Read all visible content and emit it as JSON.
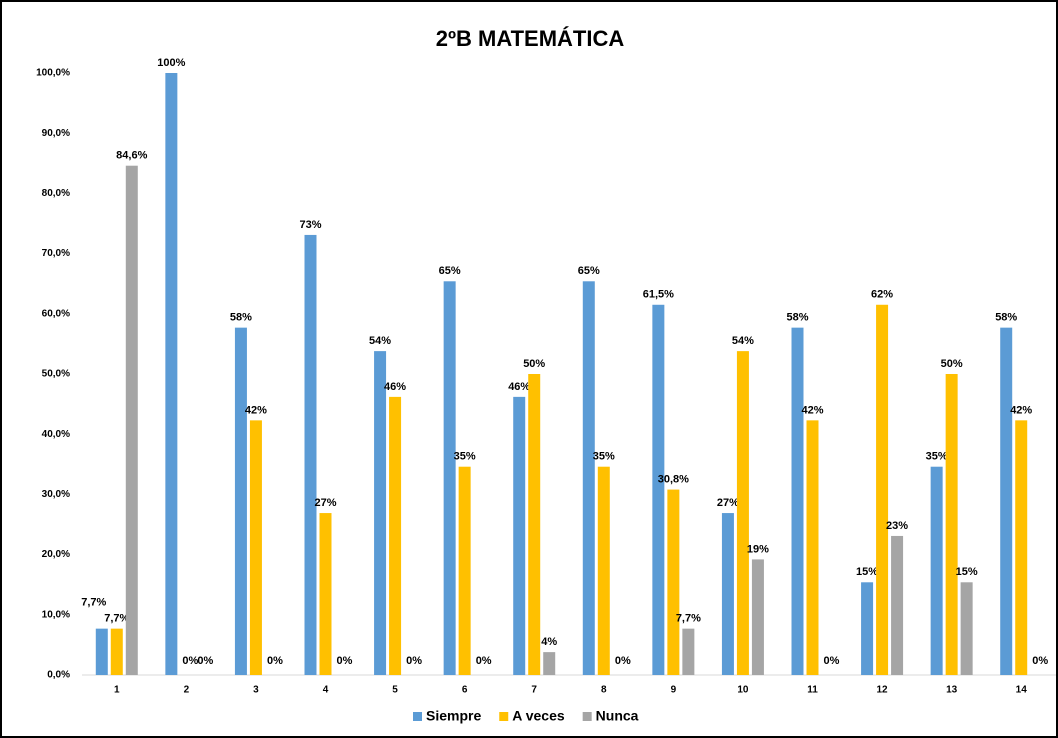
{
  "chart_data": {
    "type": "bar",
    "title": "2ºB MATEMÁTICA",
    "categories": [
      "1",
      "2",
      "3",
      "4",
      "5",
      "6",
      "7",
      "8",
      "9",
      "10",
      "11",
      "12",
      "13",
      "14"
    ],
    "series": [
      {
        "name": "Siempre",
        "color": "#5b9bd5",
        "values": [
          7.7,
          100,
          57.7,
          73.1,
          53.8,
          65.4,
          46.2,
          65.4,
          61.5,
          26.9,
          57.7,
          15.4,
          34.6,
          57.7
        ],
        "value_labels": [
          "7,7%",
          "100%",
          "58%",
          "73%",
          "54%",
          "65%",
          "46%",
          "65%",
          "61,5%",
          "27%",
          "58%",
          "15%",
          "35%",
          "58%"
        ]
      },
      {
        "name": "A veces",
        "color": "#ffc000",
        "values": [
          7.7,
          0,
          42.3,
          26.9,
          46.2,
          34.6,
          50,
          34.6,
          30.8,
          53.8,
          42.3,
          61.5,
          50,
          42.3
        ],
        "value_labels": [
          "7,7%",
          "0%",
          "42%",
          "27%",
          "46%",
          "35%",
          "50%",
          "35%",
          "30,8%",
          "54%",
          "42%",
          "62%",
          "50%",
          "42%"
        ]
      },
      {
        "name": "Nunca",
        "color": "#a5a5a5",
        "values": [
          84.6,
          0,
          0,
          0,
          0,
          0,
          3.8,
          0,
          7.7,
          19.2,
          0,
          23.1,
          15.4,
          0
        ],
        "value_labels": [
          "84,6%",
          "0%",
          "0%",
          "0%",
          "0%",
          "0%",
          "4%",
          "0%",
          "7,7%",
          "19%",
          "0%",
          "23%",
          "15%",
          "0%"
        ]
      }
    ],
    "ylim": [
      0,
      100
    ],
    "yticks": [
      {
        "value": 0,
        "label": "0,0%"
      },
      {
        "value": 10,
        "label": "10,0%"
      },
      {
        "value": 20,
        "label": "20,0%"
      },
      {
        "value": 30,
        "label": "30,0%"
      },
      {
        "value": 40,
        "label": "40,0%"
      },
      {
        "value": 50,
        "label": "50,0%"
      },
      {
        "value": 60,
        "label": "60,0%"
      },
      {
        "value": 70,
        "label": "70,0%"
      },
      {
        "value": 80,
        "label": "80,0%"
      },
      {
        "value": 90,
        "label": "90,0%"
      },
      {
        "value": 100,
        "label": "100,0%"
      }
    ],
    "grid": false,
    "legend": "bottom"
  }
}
